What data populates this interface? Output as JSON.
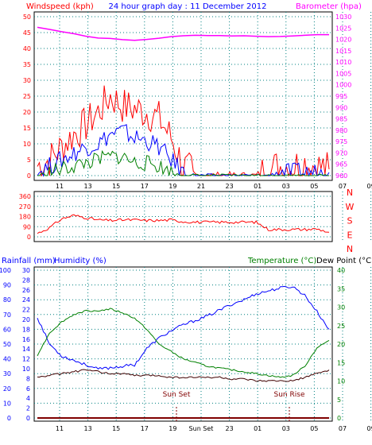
{
  "title": "24 hour graph day : 11 December 2012",
  "x_tick_labels": [
    "11",
    "13",
    "15",
    "17",
    "19",
    "21",
    "23",
    "01",
    "03",
    "05",
    "07",
    "09"
  ],
  "bottom_x_tick_labels": [
    "11",
    "13",
    "15",
    "17",
    "19",
    "Sun Set",
    "23",
    "01",
    "03",
    "05",
    "07",
    "09"
  ],
  "colors": {
    "windspeed": "#ff0000",
    "gust": "#ff0000",
    "avg_wind": "#0000ff",
    "wind_green": "#008000",
    "barometer": "#ff00ff",
    "direction": "#ff0000",
    "humidity": "#0000ff",
    "temperature": "#008000",
    "dewpoint": "#400000",
    "rainfall": "#800000",
    "axis_left": "#ff0000",
    "axis_right_baro": "#ff00ff",
    "axis_humidity": "#0000ff",
    "axis_temp": "#008000",
    "axis_rain": "#0000ff",
    "grid": "#008080"
  },
  "wind_panel": {
    "left_label": "Windspeed (kph)",
    "right_label": "Barometer (hpa)",
    "left_ticks": [
      "0",
      "5",
      "10",
      "15",
      "20",
      "25",
      "30",
      "35",
      "40",
      "45",
      "50"
    ],
    "right_ticks": [
      "960",
      "965",
      "970",
      "975",
      "980",
      "985",
      "990",
      "995",
      "1000",
      "1005",
      "1010",
      "1015",
      "1020",
      "1025",
      "1030"
    ]
  },
  "direction_panel": {
    "left_ticks": [
      "0",
      "90",
      "180",
      "270",
      "360"
    ],
    "compass": [
      "N",
      "W",
      "S",
      "E",
      "N"
    ]
  },
  "bottom_panel": {
    "rainfall_label": "Rainfall (mm)",
    "humidity_label": "Humidity (%)",
    "temperature_label": "Temperature (°C)",
    "dewpoint_label": "Dew Point (°C)",
    "humidity_ticks": [
      "0",
      "10",
      "20",
      "30",
      "40",
      "50",
      "60",
      "70",
      "80",
      "90",
      "100"
    ],
    "rain_ticks": [
      "0",
      "2",
      "4",
      "6",
      "8",
      "10",
      "12",
      "14",
      "16",
      "18",
      "20",
      "22",
      "24",
      "26",
      "28",
      "30"
    ],
    "temp_ticks": [
      "0",
      "5",
      "10",
      "15",
      "20",
      "25",
      "30",
      "35",
      "40"
    ],
    "sun_set": "Sun Set",
    "sun_rise": "Sun Rise"
  },
  "chart_data": [
    {
      "type": "line",
      "title": "24 hour graph day : 11 December 2012",
      "x": [
        "10",
        "11",
        "12",
        "13",
        "14",
        "15",
        "16",
        "17",
        "18",
        "19",
        "20",
        "21",
        "22",
        "23",
        "00",
        "01",
        "02",
        "03",
        "04",
        "05",
        "06",
        "07",
        "08",
        "09",
        "09:30"
      ],
      "ylabel": "Windspeed (kph)",
      "ylim": [
        0,
        50
      ],
      "y2label": "Barometer (hpa)",
      "y2lim": [
        960,
        1030
      ],
      "series": [
        {
          "values": [
            3,
            5,
            9,
            13,
            16,
            20,
            25,
            22,
            21,
            20,
            18,
            12,
            3,
            0,
            0,
            0,
            0,
            0,
            0,
            2,
            3,
            3,
            4,
            3,
            2
          ]
        },
        {
          "values": [
            1,
            3,
            5,
            7,
            9,
            10,
            13,
            14,
            12,
            11,
            9,
            5,
            1,
            0,
            0,
            0,
            0,
            0,
            0,
            0,
            1,
            1,
            1,
            1,
            1
          ]
        },
        {
          "values": [
            0,
            1,
            2,
            3,
            4,
            5,
            6,
            6,
            4,
            4,
            3,
            1,
            0,
            0,
            0,
            0,
            0,
            0,
            0,
            0,
            0,
            0,
            0,
            0,
            0
          ]
        },
        {
          "axis": "right",
          "values": [
            1025.3,
            1024.4,
            1023.4,
            1022.5,
            1021.4,
            1020.6,
            1020.4,
            1019.9,
            1019.6,
            1020.0,
            1020.5,
            1021.2,
            1021.6,
            1021.8,
            1021.7,
            1021.7,
            1021.5,
            1021.6,
            1021.4,
            1021.2,
            1021.3,
            1021.5,
            1021.8,
            1022.1,
            1022.1
          ]
        }
      ]
    },
    {
      "type": "line",
      "x": [
        "10",
        "11",
        "12",
        "13",
        "14",
        "15",
        "16",
        "17",
        "18",
        "19",
        "20",
        "21",
        "22",
        "23",
        "00",
        "01",
        "02",
        "03",
        "04",
        "05",
        "06",
        "07",
        "08",
        "09",
        "09:30"
      ],
      "ylabel": "",
      "ylim": [
        0,
        360
      ],
      "series": [
        {
          "values": [
            30,
            80,
            160,
            190,
            170,
            150,
            145,
            150,
            150,
            145,
            145,
            150,
            135,
            130,
            130,
            130,
            130,
            130,
            130,
            65,
            65,
            65,
            65,
            70,
            40
          ]
        }
      ]
    },
    {
      "type": "line",
      "x": [
        "10",
        "11",
        "12",
        "13",
        "14",
        "15",
        "16",
        "17",
        "18",
        "19",
        "20",
        "21",
        "22",
        "23",
        "00",
        "01",
        "02",
        "03",
        "04",
        "05",
        "06",
        "07",
        "08",
        "09",
        "09:30"
      ],
      "ylabel": "Humidity (%)",
      "ylim": [
        0,
        100
      ],
      "y2label": "Temperature (°C)",
      "y2lim": [
        0,
        40
      ],
      "series": [
        {
          "values": [
            68,
            50,
            42,
            39,
            36,
            33,
            34,
            35,
            36,
            47,
            54,
            59,
            63,
            66,
            69,
            73,
            77,
            80,
            84,
            86,
            88,
            89,
            83,
            72,
            60
          ]
        },
        {
          "axis": "right",
          "values": [
            17,
            23,
            26,
            28,
            29,
            29,
            29.5,
            28.5,
            27,
            24,
            20,
            18,
            16,
            15,
            14,
            13.5,
            13,
            12.5,
            12,
            11.5,
            11,
            11.5,
            14,
            19,
            21
          ]
        },
        {
          "axis": "right",
          "values": [
            11,
            11.5,
            12,
            12.5,
            13,
            12.5,
            12,
            12,
            11.5,
            11.5,
            11.5,
            11,
            11,
            11,
            11,
            11,
            10.5,
            10.5,
            10,
            10,
            10,
            10,
            11,
            12,
            13
          ]
        },
        {
          "values": [
            0,
            0,
            0,
            0,
            0,
            0,
            0,
            0,
            0,
            0,
            0,
            0,
            0,
            0,
            0,
            0,
            0,
            0,
            0,
            0,
            0,
            0,
            0,
            0,
            0
          ]
        }
      ]
    }
  ]
}
